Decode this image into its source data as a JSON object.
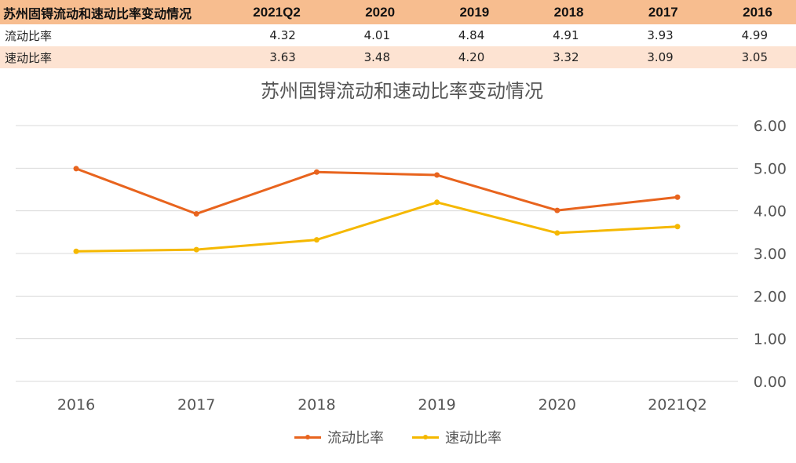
{
  "table": {
    "title": "苏州固锝流动和速动比率变动情况",
    "headers": [
      "2021Q2",
      "2020",
      "2019",
      "2018",
      "2017",
      "2016"
    ],
    "rows": [
      {
        "label": "流动比率",
        "values": [
          "4.32",
          "4.01",
          "4.84",
          "4.91",
          "3.93",
          "4.99"
        ]
      },
      {
        "label": "速动比率",
        "values": [
          "3.63",
          "3.48",
          "4.20",
          "3.32",
          "3.09",
          "3.05"
        ]
      }
    ]
  },
  "colors": {
    "header_bg": "#f7bd8f",
    "row2_bg": "#fde3d2",
    "series1": "#e8641e",
    "series2": "#f5b800",
    "grid": "#d9d9d9"
  },
  "chart_data": {
    "type": "line",
    "title": "苏州固锝流动和速动比率变动情况",
    "categories": [
      "2016",
      "2017",
      "2018",
      "2019",
      "2020",
      "2021Q2"
    ],
    "series": [
      {
        "name": "流动比率",
        "values": [
          4.99,
          3.93,
          4.91,
          4.84,
          4.01,
          4.32
        ]
      },
      {
        "name": "速动比率",
        "values": [
          3.05,
          3.09,
          3.32,
          4.2,
          3.48,
          3.63
        ]
      }
    ],
    "ylim": [
      0,
      6
    ],
    "ytick_labels": [
      "0.00",
      "1.00",
      "2.00",
      "3.00",
      "4.00",
      "5.00",
      "6.00"
    ],
    "y_axis_position": "right",
    "grid": true,
    "legend_position": "bottom"
  }
}
